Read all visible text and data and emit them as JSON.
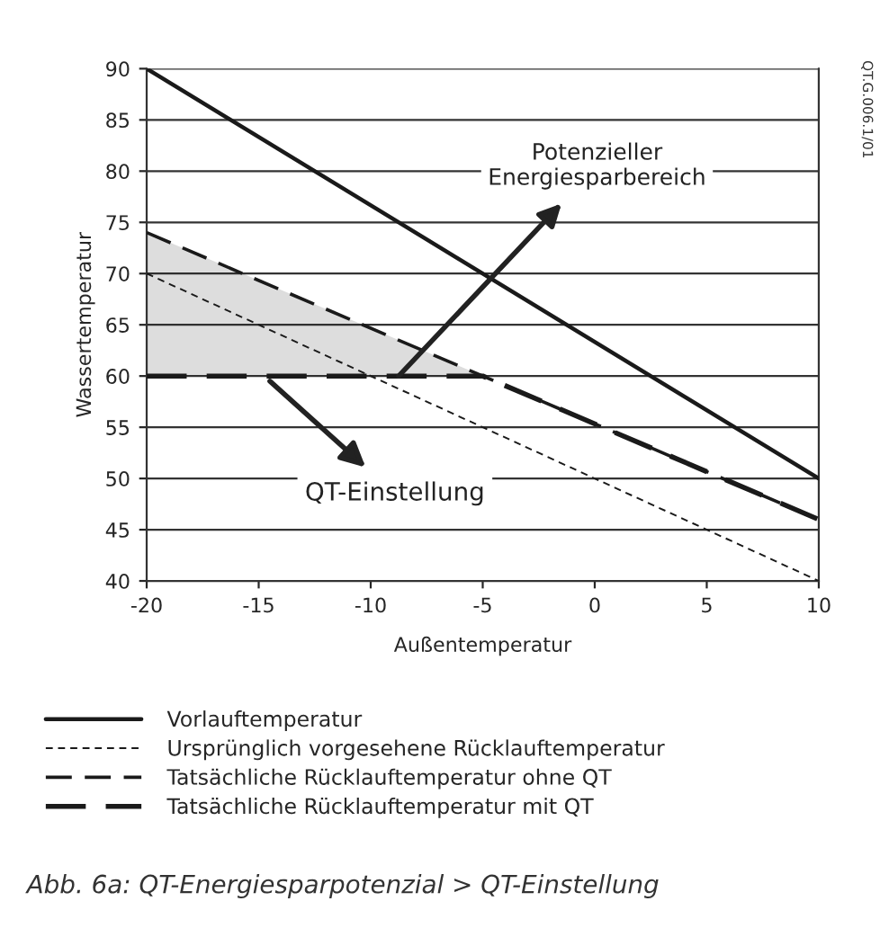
{
  "chart_data": {
    "type": "line",
    "xlabel": "Außentemperatur",
    "ylabel": "Wassertemperatur",
    "series": [
      {
        "name": "Vorlauftemperatur",
        "color": "#1a1a1a",
        "line_style": "solid",
        "x": [
          -20,
          10
        ],
        "values": [
          90,
          50
        ]
      },
      {
        "name": "Ursprünglich vorgesehene Rücklauftemperatur",
        "color": "#1a1a1a",
        "line_style": "dashed",
        "x": [
          -20,
          10
        ],
        "values": [
          70,
          40
        ]
      },
      {
        "name": "Tatsächliche Rücklauftemperatur ohne QT",
        "color": "#1a1a1a",
        "line_style": "dashed",
        "x": [
          -20,
          -5,
          10
        ],
        "values": [
          74,
          60,
          46
        ]
      },
      {
        "name": "Tatsächliche Rücklauftemperatur mit QT",
        "color": "#1a1a1a",
        "line_style": "dashed",
        "x": [
          -20,
          -5,
          10
        ],
        "values": [
          60,
          60,
          46
        ],
        "lower": [
          60,
          60,
          46
        ],
        "upper": [
          74,
          60,
          46
        ]
      }
    ],
    "xlim": [
      -20,
      10
    ],
    "xticks": [
      -20,
      -15,
      -10,
      -5,
      0,
      5,
      10
    ],
    "ylim": [
      40,
      90
    ],
    "yticks": [
      40,
      45,
      50,
      55,
      60,
      65,
      70,
      75,
      80,
      85,
      90
    ],
    "grid": "y",
    "legend": "bottom",
    "annotations": [
      "Potenzieller\nEnergiesparbereich",
      {
        "text": "QT-Einstellung",
        "x": -14.5,
        "y": 59.5
      },
      "QT.G.006.1/01",
      "Abb. 6a: QT-Energiesparpotenzial > QT-Einstellung"
    ]
  }
}
